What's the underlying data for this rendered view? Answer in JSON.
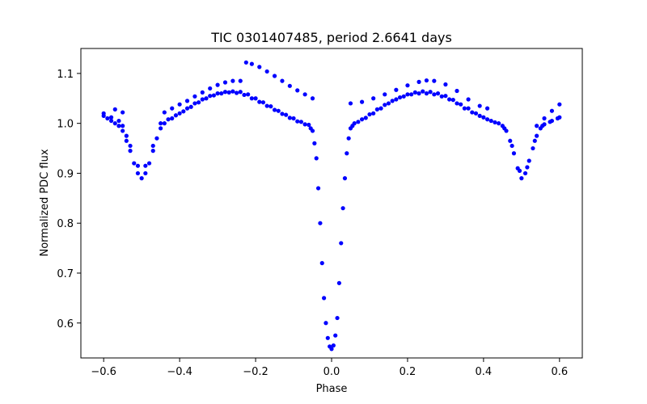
{
  "chart_data": {
    "type": "scatter",
    "title": "TIC 0301407485, period 2.6641 days",
    "xlabel": "Phase",
    "ylabel": "Normalized PDC flux",
    "xlim": [
      -0.66,
      0.66
    ],
    "ylim": [
      0.53,
      1.15
    ],
    "xticks": [
      -0.6,
      -0.4,
      -0.2,
      0.0,
      0.2,
      0.4,
      0.6
    ],
    "xtick_labels": [
      "−0.6",
      "−0.4",
      "−0.2",
      "0.0",
      "0.2",
      "0.4",
      "0.6"
    ],
    "yticks": [
      0.6,
      0.7,
      0.8,
      0.9,
      1.0,
      1.1
    ],
    "ytick_labels": [
      "0.6",
      "0.7",
      "0.8",
      "0.9",
      "1.0",
      "1.1"
    ],
    "grid": false,
    "marker_color": "#0000ff",
    "series": [
      {
        "points": [
          [
            -0.6,
            1.015
          ],
          [
            -0.59,
            1.01
          ],
          [
            -0.58,
            1.005
          ],
          [
            -0.57,
            1.0
          ],
          [
            -0.56,
            0.995
          ],
          [
            -0.55,
            0.985
          ],
          [
            -0.54,
            0.965
          ],
          [
            -0.53,
            0.945
          ],
          [
            -0.52,
            0.92
          ],
          [
            -0.51,
            0.9
          ],
          [
            -0.5,
            0.89
          ],
          [
            -0.49,
            0.9
          ],
          [
            -0.48,
            0.92
          ],
          [
            -0.47,
            0.945
          ],
          [
            -0.46,
            0.97
          ],
          [
            -0.45,
            0.99
          ],
          [
            -0.44,
            1.0
          ],
          [
            -0.42,
            1.01
          ],
          [
            -0.4,
            1.02
          ],
          [
            -0.38,
            1.03
          ],
          [
            -0.36,
            1.04
          ],
          [
            -0.34,
            1.048
          ],
          [
            -0.32,
            1.055
          ],
          [
            -0.3,
            1.06
          ],
          [
            -0.28,
            1.063
          ],
          [
            -0.26,
            1.064
          ],
          [
            -0.24,
            1.063
          ],
          [
            -0.22,
            1.058
          ],
          [
            -0.2,
            1.05
          ],
          [
            -0.18,
            1.042
          ],
          [
            -0.16,
            1.034
          ],
          [
            -0.14,
            1.025
          ],
          [
            -0.12,
            1.017
          ],
          [
            -0.1,
            1.01
          ],
          [
            -0.08,
            1.003
          ],
          [
            -0.06,
            0.997
          ],
          [
            -0.05,
            0.985
          ],
          [
            -0.045,
            0.96
          ],
          [
            -0.04,
            0.93
          ],
          [
            -0.035,
            0.87
          ],
          [
            -0.03,
            0.8
          ],
          [
            -0.025,
            0.72
          ],
          [
            -0.02,
            0.65
          ],
          [
            -0.015,
            0.6
          ],
          [
            -0.01,
            0.57
          ],
          [
            -0.005,
            0.553
          ],
          [
            0.0,
            0.548
          ],
          [
            0.005,
            0.555
          ],
          [
            0.01,
            0.575
          ],
          [
            0.015,
            0.61
          ],
          [
            0.02,
            0.68
          ],
          [
            0.025,
            0.76
          ],
          [
            0.03,
            0.83
          ],
          [
            0.035,
            0.89
          ],
          [
            0.04,
            0.94
          ],
          [
            0.045,
            0.97
          ],
          [
            0.05,
            0.99
          ],
          [
            0.06,
            1.0
          ],
          [
            0.08,
            1.008
          ],
          [
            0.1,
            1.018
          ],
          [
            0.12,
            1.028
          ],
          [
            0.14,
            1.037
          ],
          [
            0.16,
            1.045
          ],
          [
            0.18,
            1.052
          ],
          [
            0.2,
            1.058
          ],
          [
            0.22,
            1.062
          ],
          [
            0.24,
            1.064
          ],
          [
            0.26,
            1.063
          ],
          [
            0.28,
            1.06
          ],
          [
            0.3,
            1.055
          ],
          [
            0.32,
            1.047
          ],
          [
            0.34,
            1.038
          ],
          [
            0.36,
            1.03
          ],
          [
            0.38,
            1.02
          ],
          [
            0.4,
            1.012
          ],
          [
            0.42,
            1.005
          ],
          [
            0.44,
            1.0
          ],
          [
            0.45,
            0.995
          ],
          [
            0.46,
            0.985
          ],
          [
            0.47,
            0.965
          ],
          [
            0.48,
            0.94
          ],
          [
            0.49,
            0.91
          ],
          [
            0.5,
            0.89
          ],
          [
            0.51,
            0.9
          ],
          [
            0.52,
            0.925
          ],
          [
            0.53,
            0.95
          ],
          [
            0.54,
            0.975
          ],
          [
            0.55,
            0.99
          ],
          [
            0.56,
            0.998
          ],
          [
            0.58,
            1.005
          ],
          [
            0.6,
            1.012
          ],
          [
            -0.6,
            1.02
          ],
          [
            -0.58,
            1.012
          ],
          [
            -0.56,
            1.005
          ],
          [
            -0.55,
            0.995
          ],
          [
            -0.54,
            0.975
          ],
          [
            -0.53,
            0.955
          ],
          [
            -0.51,
            0.915
          ],
          [
            -0.49,
            0.915
          ],
          [
            -0.47,
            0.955
          ],
          [
            -0.45,
            1.0
          ],
          [
            -0.43,
            1.008
          ],
          [
            -0.41,
            1.016
          ],
          [
            -0.39,
            1.024
          ],
          [
            -0.37,
            1.033
          ],
          [
            -0.35,
            1.042
          ],
          [
            -0.33,
            1.05
          ],
          [
            -0.31,
            1.056
          ],
          [
            -0.29,
            1.06
          ],
          [
            -0.27,
            1.062
          ],
          [
            -0.25,
            1.061
          ],
          [
            -0.23,
            1.057
          ],
          [
            -0.21,
            1.05
          ],
          [
            -0.19,
            1.043
          ],
          [
            -0.17,
            1.035
          ],
          [
            -0.15,
            1.027
          ],
          [
            -0.13,
            1.019
          ],
          [
            -0.11,
            1.011
          ],
          [
            -0.09,
            1.004
          ],
          [
            -0.07,
            0.998
          ],
          [
            -0.055,
            0.99
          ],
          [
            0.055,
            0.995
          ],
          [
            0.07,
            1.003
          ],
          [
            0.09,
            1.011
          ],
          [
            0.11,
            1.02
          ],
          [
            0.13,
            1.03
          ],
          [
            0.15,
            1.04
          ],
          [
            0.17,
            1.048
          ],
          [
            0.19,
            1.054
          ],
          [
            0.21,
            1.058
          ],
          [
            0.23,
            1.06
          ],
          [
            0.25,
            1.06
          ],
          [
            0.27,
            1.058
          ],
          [
            0.29,
            1.054
          ],
          [
            0.31,
            1.048
          ],
          [
            0.33,
            1.04
          ],
          [
            0.35,
            1.03
          ],
          [
            0.37,
            1.022
          ],
          [
            0.39,
            1.015
          ],
          [
            0.41,
            1.008
          ],
          [
            0.43,
            1.002
          ],
          [
            0.455,
            0.99
          ],
          [
            0.475,
            0.955
          ],
          [
            0.495,
            0.905
          ],
          [
            0.515,
            0.912
          ],
          [
            0.535,
            0.965
          ],
          [
            0.555,
            0.995
          ],
          [
            0.575,
            1.003
          ],
          [
            0.595,
            1.01
          ],
          [
            -0.57,
            1.028
          ],
          [
            -0.55,
            1.022
          ],
          [
            -0.44,
            1.022
          ],
          [
            -0.42,
            1.03
          ],
          [
            -0.4,
            1.038
          ],
          [
            -0.38,
            1.045
          ],
          [
            -0.36,
            1.054
          ],
          [
            -0.34,
            1.062
          ],
          [
            -0.32,
            1.07
          ],
          [
            -0.3,
            1.077
          ],
          [
            -0.28,
            1.082
          ],
          [
            -0.26,
            1.085
          ],
          [
            -0.24,
            1.085
          ],
          [
            -0.225,
            1.122
          ],
          [
            -0.21,
            1.119
          ],
          [
            -0.19,
            1.113
          ],
          [
            -0.17,
            1.104
          ],
          [
            -0.15,
            1.095
          ],
          [
            -0.13,
            1.085
          ],
          [
            -0.11,
            1.075
          ],
          [
            -0.09,
            1.066
          ],
          [
            -0.07,
            1.058
          ],
          [
            -0.05,
            1.05
          ],
          [
            0.05,
            1.04
          ],
          [
            0.08,
            1.043
          ],
          [
            0.11,
            1.05
          ],
          [
            0.14,
            1.058
          ],
          [
            0.17,
            1.067
          ],
          [
            0.2,
            1.076
          ],
          [
            0.23,
            1.083
          ],
          [
            0.25,
            1.086
          ],
          [
            0.27,
            1.085
          ],
          [
            0.3,
            1.078
          ],
          [
            0.33,
            1.065
          ],
          [
            0.36,
            1.048
          ],
          [
            0.39,
            1.035
          ],
          [
            0.41,
            1.03
          ],
          [
            0.54,
            0.995
          ],
          [
            0.56,
            1.01
          ],
          [
            0.58,
            1.025
          ],
          [
            0.6,
            1.038
          ]
        ]
      }
    ]
  }
}
